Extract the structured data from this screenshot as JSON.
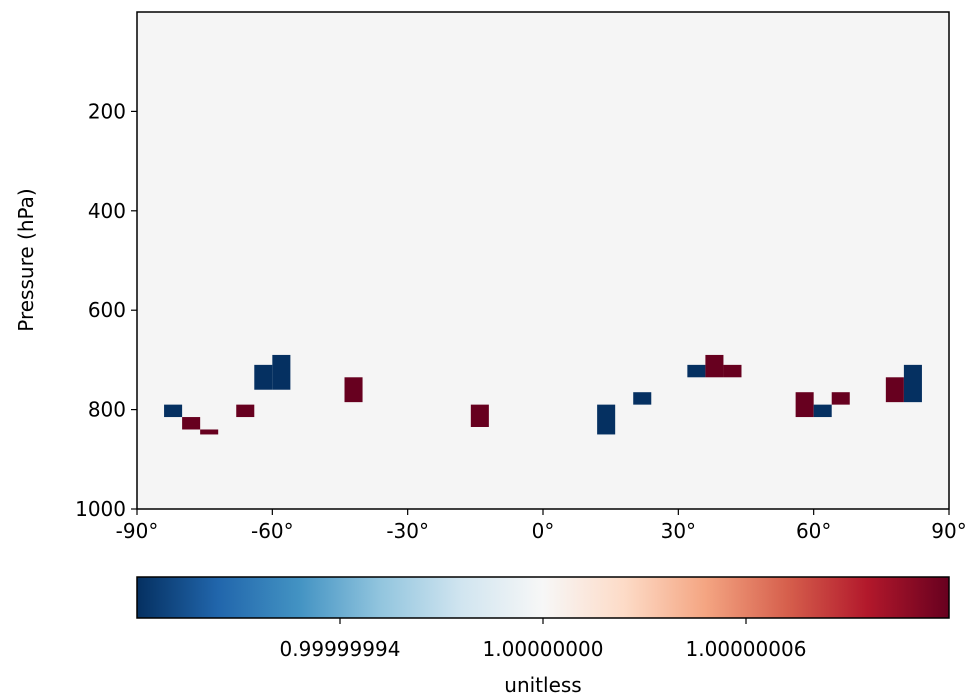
{
  "chart_data": {
    "type": "heatmap",
    "title": "",
    "xlabel": "",
    "ylabel": "Pressure (hPa)",
    "xlim": [
      -90,
      90
    ],
    "ylim": [
      1000,
      0
    ],
    "x_ticks": [
      {
        "value": -90,
        "label": "-90°"
      },
      {
        "value": -60,
        "label": "-60°"
      },
      {
        "value": -30,
        "label": "-30°"
      },
      {
        "value": 0,
        "label": "0°"
      },
      {
        "value": 30,
        "label": "30°"
      },
      {
        "value": 60,
        "label": "60°"
      },
      {
        "value": 90,
        "label": "90°"
      }
    ],
    "y_ticks": [
      {
        "value": 200,
        "label": "200"
      },
      {
        "value": 400,
        "label": "400"
      },
      {
        "value": 600,
        "label": "600"
      },
      {
        "value": 800,
        "label": "800"
      },
      {
        "value": 1000,
        "label": "1000"
      }
    ],
    "background_value": 1.0,
    "cells": [
      {
        "lat": [
          -84,
          -80
        ],
        "p": [
          790,
          815
        ],
        "sign": "low"
      },
      {
        "lat": [
          -80,
          -76
        ],
        "p": [
          815,
          840
        ],
        "sign": "high"
      },
      {
        "lat": [
          -76,
          -72
        ],
        "p": [
          840,
          850
        ],
        "sign": "high"
      },
      {
        "lat": [
          -68,
          -64
        ],
        "p": [
          790,
          815
        ],
        "sign": "high"
      },
      {
        "lat": [
          -64,
          -60
        ],
        "p": [
          710,
          760
        ],
        "sign": "low"
      },
      {
        "lat": [
          -60,
          -56
        ],
        "p": [
          690,
          760
        ],
        "sign": "low"
      },
      {
        "lat": [
          -44,
          -40
        ],
        "p": [
          735,
          785
        ],
        "sign": "high"
      },
      {
        "lat": [
          -16,
          -12
        ],
        "p": [
          790,
          835
        ],
        "sign": "high"
      },
      {
        "lat": [
          12,
          16
        ],
        "p": [
          790,
          850
        ],
        "sign": "low"
      },
      {
        "lat": [
          20,
          24
        ],
        "p": [
          765,
          790
        ],
        "sign": "low"
      },
      {
        "lat": [
          32,
          36
        ],
        "p": [
          710,
          735
        ],
        "sign": "low"
      },
      {
        "lat": [
          36,
          40
        ],
        "p": [
          690,
          735
        ],
        "sign": "high"
      },
      {
        "lat": [
          40,
          44
        ],
        "p": [
          710,
          735
        ],
        "sign": "high"
      },
      {
        "lat": [
          56,
          60
        ],
        "p": [
          765,
          815
        ],
        "sign": "high"
      },
      {
        "lat": [
          60,
          64
        ],
        "p": [
          790,
          815
        ],
        "sign": "low"
      },
      {
        "lat": [
          64,
          68
        ],
        "p": [
          765,
          790
        ],
        "sign": "high"
      },
      {
        "lat": [
          76,
          80
        ],
        "p": [
          735,
          785
        ],
        "sign": "high"
      },
      {
        "lat": [
          80,
          84
        ],
        "p": [
          710,
          785
        ],
        "sign": "low"
      }
    ],
    "colorbar": {
      "label": "unitless",
      "colormap": "RdBu_r",
      "range": [
        0.99999988,
        1.00000012
      ],
      "ticks": [
        {
          "value": 0.99999994,
          "label": "0.99999994"
        },
        {
          "value": 1.0,
          "label": "1.00000000"
        },
        {
          "value": 1.00000006,
          "label": "1.00000006"
        }
      ]
    },
    "colors": {
      "low": "#053061",
      "high": "#67001f",
      "background": "#f5f5f5",
      "stops": [
        "#053061",
        "#2166ac",
        "#4393c3",
        "#92c5de",
        "#d1e5f0",
        "#f7f7f7",
        "#fddbc7",
        "#f4a582",
        "#d6604d",
        "#b2182b",
        "#67001f"
      ]
    }
  }
}
